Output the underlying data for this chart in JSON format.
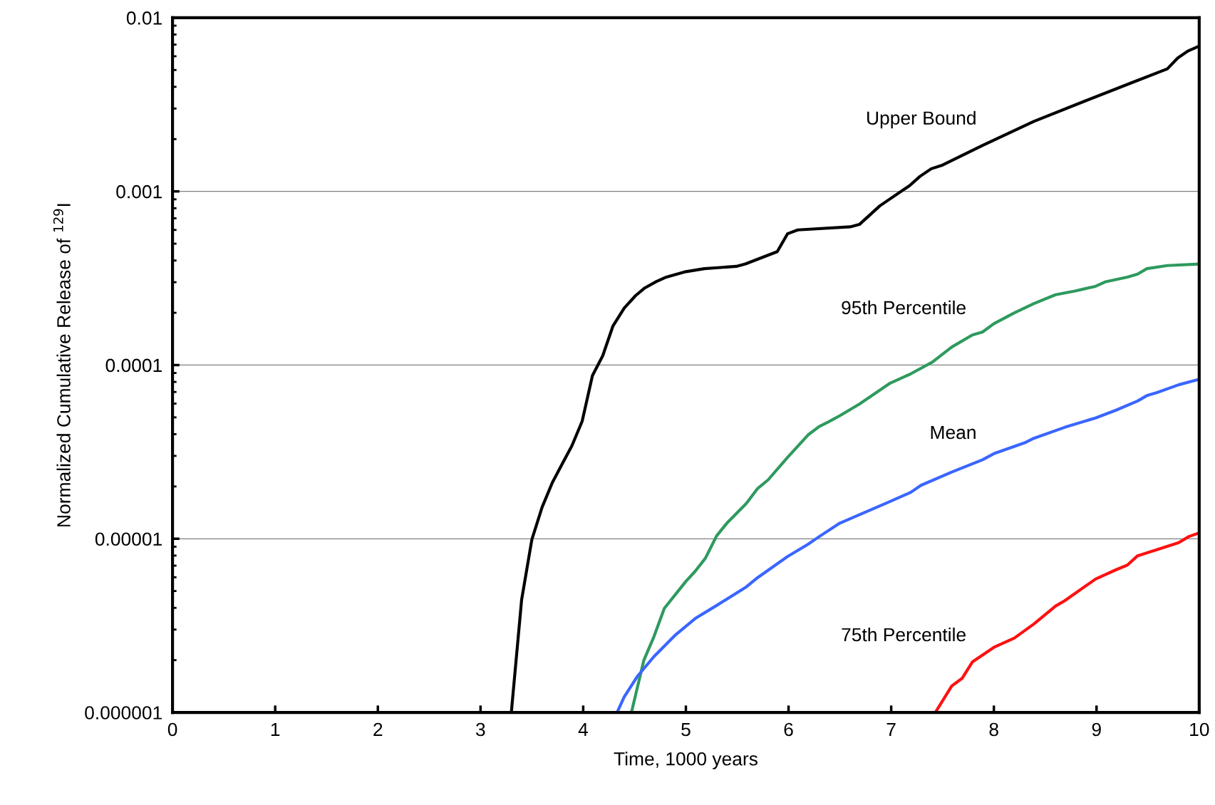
{
  "chart_data": {
    "type": "line",
    "xlabel": "Time, 1000 years",
    "ylabel": "Normalized Cumulative Release of $^{129}$I",
    "log": "y",
    "grid": "y",
    "legend": false,
    "marker": "none",
    "line_style": "solid",
    "xlim": [
      0,
      10
    ],
    "xticks": [
      0,
      1,
      2,
      3,
      4,
      5,
      6,
      7,
      8,
      9,
      10
    ],
    "ylim": [
      1e-06,
      0.01
    ],
    "yticks": [
      {
        "value": 1e-06,
        "label": "0.000001"
      },
      {
        "value": 1e-05,
        "label": "0.00001"
      },
      {
        "value": 0.0001,
        "label": "0.0001"
      },
      {
        "value": 0.001,
        "label": "0.001"
      },
      {
        "value": 0.01,
        "label": "0.01"
      }
    ],
    "series": [
      {
        "name": "Upper Bound",
        "color": "#000000",
        "x": [
          3.3,
          3.4,
          3.5,
          3.6,
          3.7,
          3.8,
          3.89,
          3.99,
          4.09,
          4.19,
          4.29,
          4.4,
          4.51,
          4.6,
          4.71,
          4.81,
          5.0,
          5.18,
          5.49,
          5.58,
          5.89,
          5.99,
          6.09,
          6.6,
          6.69,
          6.89,
          7.18,
          7.28,
          7.39,
          7.49,
          7.89,
          8.39,
          8.88,
          9.34,
          9.69,
          9.79,
          9.89,
          9.98
        ],
        "values": [
          1e-06,
          4.44e-06,
          9.9e-06,
          1.52e-05,
          2.11e-05,
          2.73e-05,
          3.43e-05,
          4.75e-05,
          8.7e-05,
          0.000113,
          0.000168,
          0.000213,
          0.000251,
          0.000278,
          0.000302,
          0.000321,
          0.000345,
          0.000359,
          0.00037,
          0.000382,
          0.00045,
          0.00057,
          0.0006,
          0.000625,
          0.000645,
          0.000826,
          0.00108,
          0.00122,
          0.00135,
          0.00141,
          0.00184,
          0.00253,
          0.0033,
          0.00422,
          0.00508,
          0.00586,
          0.00643,
          0.00678
        ]
      },
      {
        "name": "95th Percentile",
        "color": "#2e9a5e",
        "x": [
          4.47,
          4.59,
          4.69,
          4.79,
          5.0,
          5.09,
          5.19,
          5.3,
          5.4,
          5.59,
          5.7,
          5.8,
          5.99,
          6.19,
          6.3,
          6.39,
          6.5,
          6.69,
          6.99,
          7.19,
          7.4,
          7.59,
          7.79,
          7.89,
          8.0,
          8.2,
          8.39,
          8.6,
          8.79,
          8.99,
          9.09,
          9.3,
          9.4,
          9.49,
          9.69,
          10.0
        ],
        "values": [
          1e-06,
          1.99e-06,
          2.74e-06,
          3.97e-06,
          5.68e-06,
          6.49e-06,
          7.72e-06,
          1.04e-05,
          1.23e-05,
          1.6e-05,
          1.95e-05,
          2.18e-05,
          2.94e-05,
          3.96e-05,
          4.43e-05,
          4.71e-05,
          5.11e-05,
          5.96e-05,
          7.87e-05,
          8.9e-05,
          0.000104,
          0.000127,
          0.000149,
          0.000155,
          0.000173,
          0.0002,
          0.000226,
          0.000254,
          0.000267,
          0.000284,
          0.000302,
          0.000321,
          0.000334,
          0.000359,
          0.000374,
          0.000382
        ]
      },
      {
        "name": "Mean",
        "color": "#3a66ff",
        "x": [
          4.33,
          4.4,
          4.53,
          4.69,
          4.9,
          5.09,
          5.3,
          5.59,
          5.7,
          5.99,
          6.19,
          6.3,
          6.5,
          6.99,
          7.19,
          7.29,
          7.59,
          7.89,
          8.0,
          8.3,
          8.39,
          8.69,
          8.99,
          9.19,
          9.4,
          9.49,
          9.59,
          9.8,
          10.0
        ],
        "values": [
          1e-06,
          1.23e-06,
          1.62e-06,
          2.1e-06,
          2.8e-06,
          3.47e-06,
          4.13e-06,
          5.29e-06,
          5.98e-06,
          7.9e-06,
          9.3e-06,
          1.03e-05,
          1.23e-05,
          1.64e-05,
          1.85e-05,
          2.03e-05,
          2.42e-05,
          2.85e-05,
          3.09e-05,
          3.57e-05,
          3.79e-05,
          4.38e-05,
          4.96e-05,
          5.5e-05,
          6.21e-05,
          6.67e-05,
          6.95e-05,
          7.7e-05,
          8.28e-05
        ]
      },
      {
        "name": "75th Percentile",
        "color": "#ff1010",
        "x": [
          7.43,
          7.59,
          7.69,
          7.79,
          8.0,
          8.2,
          8.39,
          8.6,
          8.69,
          8.99,
          9.19,
          9.3,
          9.4,
          9.59,
          9.8,
          9.9,
          10.0
        ],
        "values": [
          1e-06,
          1.42e-06,
          1.57e-06,
          1.95e-06,
          2.37e-06,
          2.68e-06,
          3.23e-06,
          4.09e-06,
          4.4e-06,
          5.86e-06,
          6.63e-06,
          7.05e-06,
          7.98e-06,
          8.65e-06,
          9.5e-06,
          1.03e-05,
          1.08e-05
        ]
      }
    ]
  }
}
